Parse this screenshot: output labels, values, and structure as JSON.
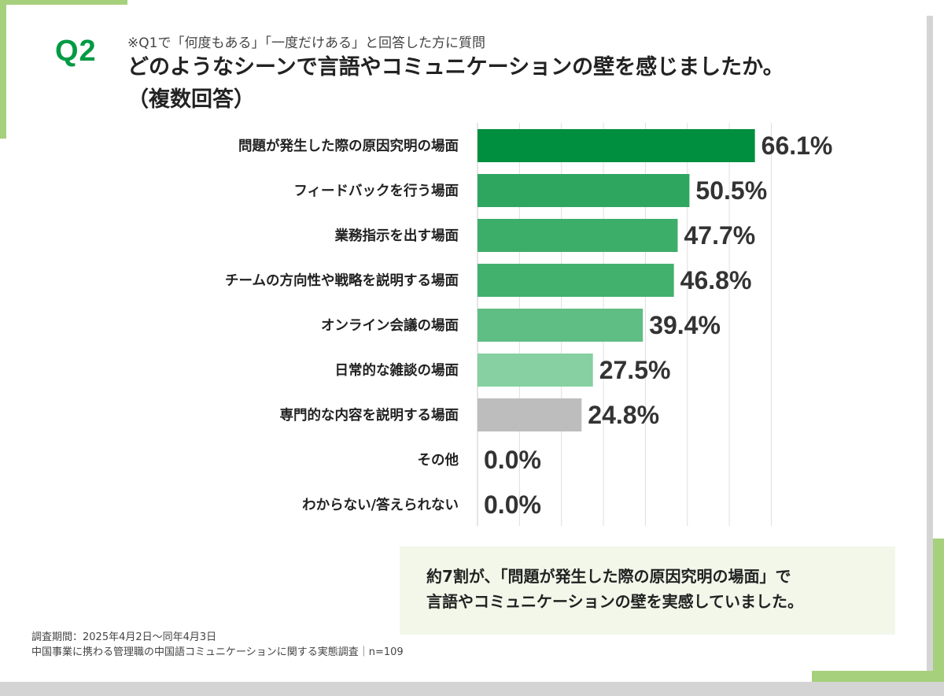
{
  "header": {
    "question_number": "Q2",
    "note": "※Q1で「何度もある」「一度だけある」と回答した方に質問",
    "title": "どのようなシーンで言語やコミュニケーションの壁を感じましたか。",
    "title_sub": "（複数回答）"
  },
  "chart_data": {
    "type": "bar",
    "orientation": "horizontal",
    "categories": [
      "問題が発生した際の原因究明の場面",
      "フィードバックを行う場面",
      "業務指示を出す場面",
      "チームの方向性や戦略を説明する場面",
      "オンライン会議の場面",
      "日常的な雑談の場面",
      "専門的な内容を説明する場面",
      "その他",
      "わからない/答えられない"
    ],
    "values": [
      66.1,
      50.5,
      47.7,
      46.8,
      39.4,
      27.5,
      24.8,
      0.0,
      0.0
    ],
    "value_labels": [
      "66.1%",
      "50.5%",
      "47.7%",
      "46.8%",
      "39.4%",
      "27.5%",
      "24.8%",
      "0.0%",
      "0.0%"
    ],
    "bar_colors": [
      "#008f3e",
      "#2ea660",
      "#3dae6a",
      "#42b16e",
      "#5fbe84",
      "#86d0a2",
      "#bdbdbd",
      "#bdbdbd",
      "#bdbdbd"
    ],
    "xlim": [
      0,
      70
    ],
    "grid": true,
    "title": "",
    "xlabel": "",
    "ylabel": ""
  },
  "callout": {
    "line1": "約7割が、「問題が発生した際の原因究明の場面」で",
    "line2": "言語やコミュニケーションの壁を実感していました。"
  },
  "footer": {
    "period": "調査期間：2025年4月2日～同年4月3日",
    "survey": "中国事業に携わる管理職の中国語コミュニケーションに関する実態調査｜n=109"
  },
  "colors": {
    "accent": "#009a44",
    "decoration": "#a6d07c",
    "callout_bg": "#f2f7ea"
  }
}
